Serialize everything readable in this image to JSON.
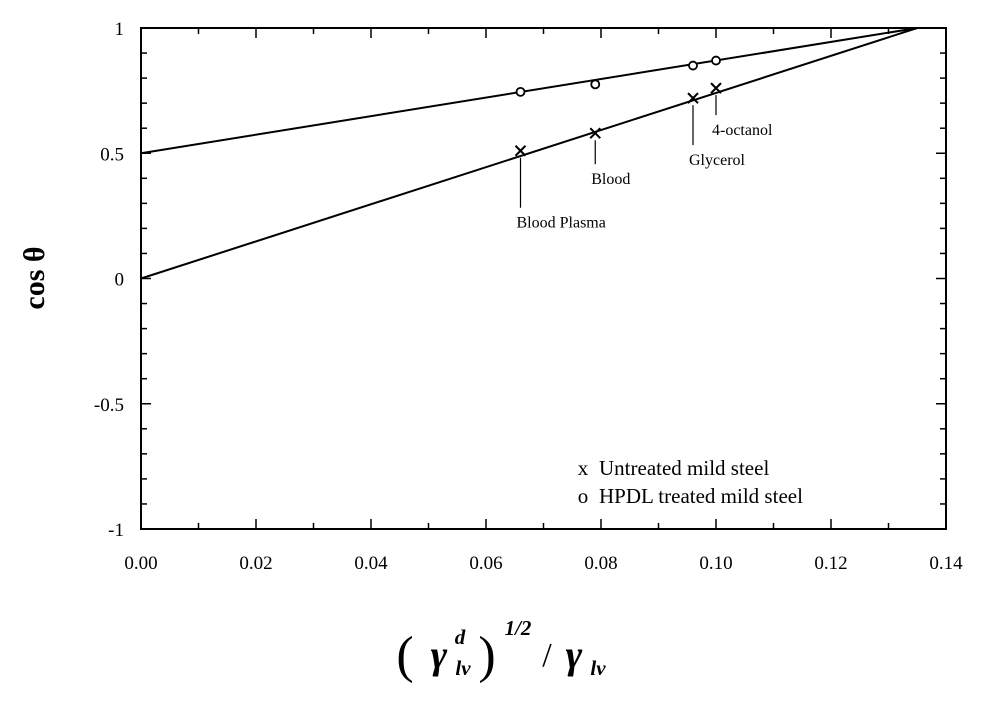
{
  "chart_data": {
    "type": "scatter",
    "ylabel": "cos θ",
    "xlabel": {
      "symbol": "γ",
      "superscript_d": "d",
      "subscript_lv": "lv",
      "exponent": "1/2",
      "separator": "/",
      "left_paren": "(",
      "right_paren": ")"
    },
    "xlim": [
      0,
      0.14
    ],
    "ylim": [
      -1,
      1
    ],
    "x_ticks": [
      "0.00",
      "0.02",
      "0.04",
      "0.06",
      "0.08",
      "0.10",
      "0.12",
      "0.14"
    ],
    "y_ticks": [
      "1",
      "0.5",
      "0",
      "-0.5",
      "-1"
    ],
    "grid": false,
    "legend_position": "bottom-right",
    "series": [
      {
        "name": "Untreated mild steel",
        "marker": "x",
        "legend_marker": "x",
        "points": [
          {
            "x": 0.066,
            "y": 0.51
          },
          {
            "x": 0.079,
            "y": 0.58
          },
          {
            "x": 0.096,
            "y": 0.72
          },
          {
            "x": 0.1,
            "y": 0.76
          }
        ],
        "fit_line": {
          "x": [
            0,
            0.135
          ],
          "y": [
            0.0,
            1.0
          ]
        }
      },
      {
        "name": "HPDL treated mild steel",
        "marker": "o",
        "legend_marker": "o",
        "points": [
          {
            "x": 0.066,
            "y": 0.745
          },
          {
            "x": 0.079,
            "y": 0.775
          },
          {
            "x": 0.096,
            "y": 0.85
          },
          {
            "x": 0.1,
            "y": 0.87
          }
        ],
        "fit_line": {
          "x": [
            0,
            0.135
          ],
          "y": [
            0.5,
            1.0
          ]
        }
      }
    ],
    "annotations": [
      {
        "text": "Blood Plasma",
        "x": 0.066,
        "y": 0.51
      },
      {
        "text": "Blood",
        "x": 0.079,
        "y": 0.58
      },
      {
        "text": "Glycerol",
        "x": 0.096,
        "y": 0.72
      },
      {
        "text": "4-octanol",
        "x": 0.1,
        "y": 0.76
      }
    ]
  }
}
